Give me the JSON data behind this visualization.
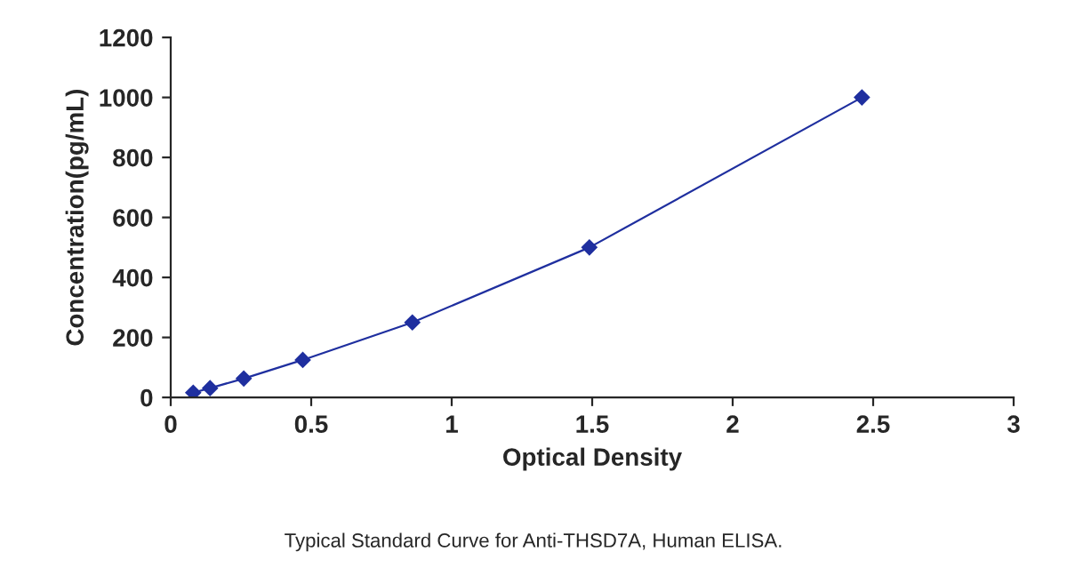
{
  "chart_data": {
    "type": "line",
    "xlabel": "Optical Density",
    "ylabel": "Concentration(pg/mL)",
    "x": [
      0.08,
      0.14,
      0.26,
      0.47,
      0.86,
      1.49,
      2.46
    ],
    "series": [
      {
        "color": "#1f2f9f",
        "values": [
          16,
          31,
          63,
          125,
          250,
          500,
          1000
        ]
      }
    ],
    "xlim": [
      0,
      3
    ],
    "xticks": [
      0,
      0.5,
      1,
      1.5,
      2,
      2.5,
      3
    ],
    "ylim": [
      0,
      1200
    ],
    "yticks": [
      0,
      200,
      400,
      600,
      800,
      1000,
      1200
    ],
    "marker": "diamond",
    "line_style": "solid",
    "grid": false,
    "annotations": [
      "Typical Standard Curve for Anti-THSD7A, Human ELISA."
    ]
  }
}
